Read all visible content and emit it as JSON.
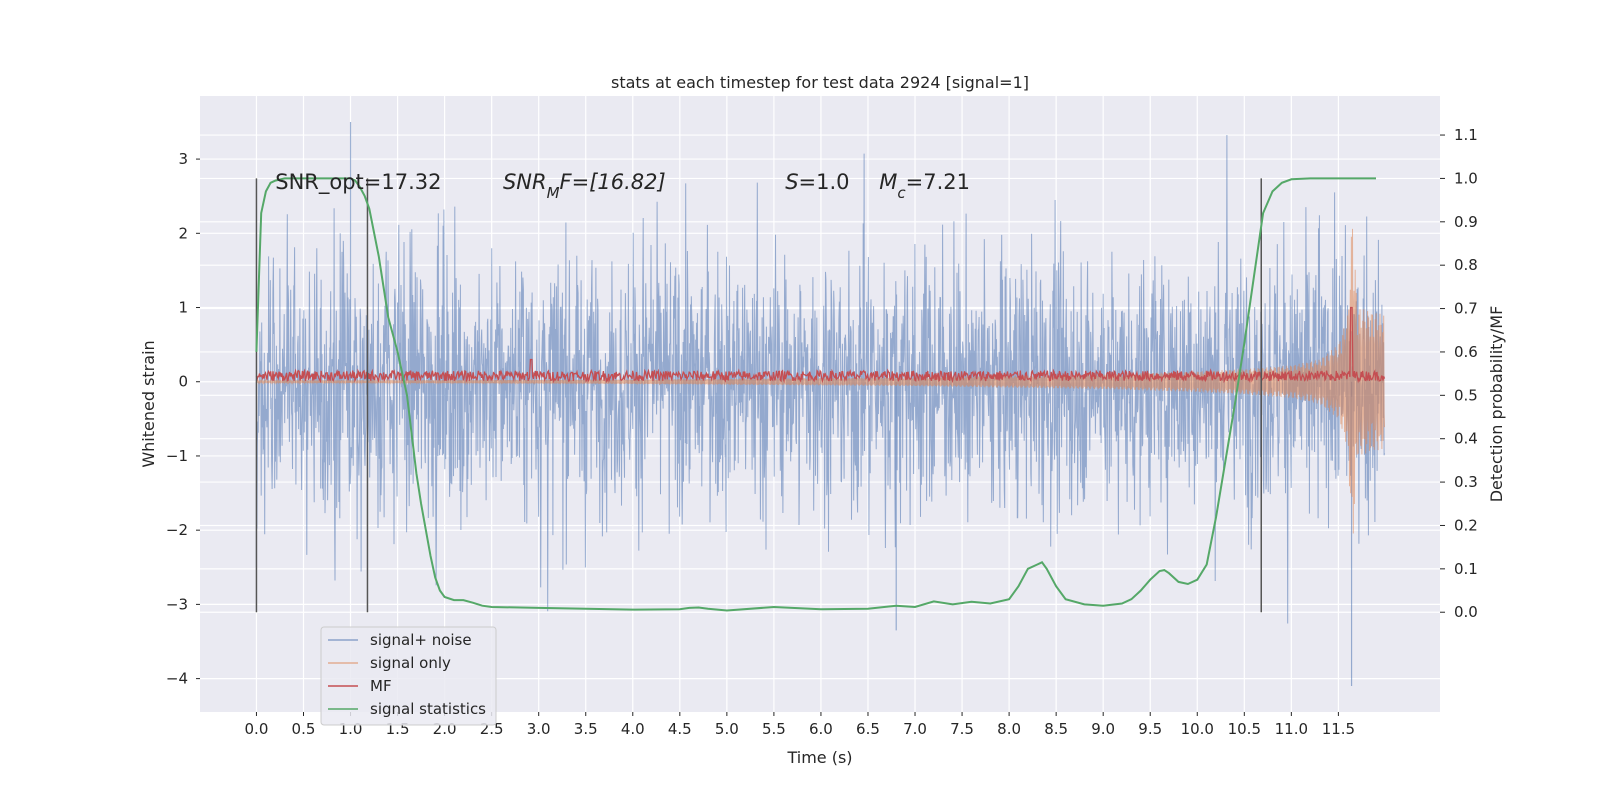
{
  "chart_data": {
    "type": "line",
    "title": "stats at each timestep for test data 2924 [signal=1]",
    "xlabel": "Time (s)",
    "ylabel": "Whitened strain",
    "y2label": "Detection probability/MF",
    "xlim": [
      -0.6,
      12.58
    ],
    "ylim": [
      -4.45,
      3.85
    ],
    "y2lim": [
      -0.23,
      1.19
    ],
    "x_ticks": [
      0.0,
      0.5,
      1.0,
      1.5,
      2.0,
      2.5,
      3.0,
      3.5,
      4.0,
      4.5,
      5.0,
      5.5,
      6.0,
      6.5,
      7.0,
      7.5,
      8.0,
      8.5,
      9.0,
      9.5,
      10.0,
      10.5,
      11.0,
      11.5
    ],
    "x_tick_labels": [
      "0.0",
      "0.5",
      "1.0",
      "1.5",
      "2.0",
      "2.5",
      "3.0",
      "3.5",
      "4.0",
      "4.5",
      "5.0",
      "5.5",
      "6.0",
      "6.5",
      "7.0",
      "7.5",
      "8.0",
      "8.5",
      "9.0",
      "9.5",
      "10.0",
      "10.5",
      "11.0",
      "11.5"
    ],
    "y_ticks": [
      -4,
      -3,
      -2,
      -1,
      0,
      1,
      2,
      3
    ],
    "y_tick_labels": [
      "−4",
      "−3",
      "−2",
      "−1",
      "0",
      "1",
      "2",
      "3"
    ],
    "y2_ticks": [
      0.0,
      0.1,
      0.2,
      0.3,
      0.4,
      0.5,
      0.6,
      0.7,
      0.8,
      0.9,
      1.0,
      1.1
    ],
    "y2_tick_labels": [
      "0.0",
      "0.1",
      "0.2",
      "0.3",
      "0.4",
      "0.5",
      "0.6",
      "0.7",
      "0.8",
      "0.9",
      "1.0",
      "1.1"
    ],
    "grid": true,
    "legend_position": "lower-left",
    "series": [
      {
        "name": "signal+ noise",
        "axis": "left",
        "color": "#4c72b0",
        "x_range": [
          0.0,
          11.99
        ],
        "amplitude_std": 0.85,
        "note_points": [
          [
            0.0,
            -2.5
          ],
          [
            1.0,
            3.5
          ],
          [
            6.8,
            -3.35
          ],
          [
            11.64,
            -4.1
          ]
        ]
      },
      {
        "name": "signal only",
        "axis": "left",
        "color": "#dd8452",
        "envelope": [
          [
            0.0,
            0.015
          ],
          [
            2.0,
            0.02
          ],
          [
            4.0,
            0.03
          ],
          [
            6.0,
            0.05
          ],
          [
            7.0,
            0.06
          ],
          [
            8.0,
            0.08
          ],
          [
            9.0,
            0.1
          ],
          [
            10.0,
            0.14
          ],
          [
            10.5,
            0.17
          ],
          [
            11.0,
            0.22
          ],
          [
            11.3,
            0.3
          ],
          [
            11.5,
            0.5
          ],
          [
            11.6,
            0.9
          ],
          [
            11.65,
            2.3
          ],
          [
            11.7,
            1.0
          ],
          [
            11.99,
            0.9
          ]
        ]
      },
      {
        "name": "MF",
        "axis": "left",
        "color": "#c44e52",
        "level": 0.08,
        "spikes": [
          [
            2.92,
            0.3
          ],
          [
            11.64,
            1.0
          ]
        ]
      },
      {
        "name": "signal statistics",
        "axis": "right",
        "color": "#55a868",
        "x": [
          0.0,
          0.05,
          0.1,
          0.15,
          0.2,
          0.3,
          0.5,
          0.8,
          1.0,
          1.05,
          1.1,
          1.15,
          1.2,
          1.3,
          1.4,
          1.5,
          1.6,
          1.7,
          1.75,
          1.8,
          1.85,
          1.9,
          1.95,
          2.0,
          2.1,
          2.2,
          2.3,
          2.4,
          2.5,
          3.0,
          3.5,
          4.0,
          4.5,
          4.6,
          4.7,
          4.8,
          5.0,
          5.5,
          6.0,
          6.5,
          6.8,
          7.0,
          7.2,
          7.4,
          7.6,
          7.8,
          8.0,
          8.1,
          8.2,
          8.3,
          8.35,
          8.4,
          8.5,
          8.6,
          8.8,
          9.0,
          9.2,
          9.3,
          9.4,
          9.5,
          9.6,
          9.65,
          9.7,
          9.8,
          9.9,
          10.0,
          10.1,
          10.2,
          10.3,
          10.4,
          10.5,
          10.6,
          10.7,
          10.8,
          10.9,
          11.0,
          11.2,
          11.5,
          11.9
        ],
        "y": [
          0.6,
          0.92,
          0.97,
          0.99,
          0.995,
          1.0,
          1.0,
          1.0,
          1.0,
          0.995,
          0.98,
          0.96,
          0.93,
          0.82,
          0.68,
          0.6,
          0.5,
          0.32,
          0.25,
          0.19,
          0.13,
          0.08,
          0.05,
          0.035,
          0.028,
          0.028,
          0.022,
          0.015,
          0.012,
          0.01,
          0.008,
          0.006,
          0.007,
          0.01,
          0.011,
          0.008,
          0.004,
          0.012,
          0.007,
          0.008,
          0.015,
          0.012,
          0.025,
          0.018,
          0.024,
          0.02,
          0.03,
          0.06,
          0.1,
          0.11,
          0.115,
          0.1,
          0.06,
          0.03,
          0.018,
          0.015,
          0.02,
          0.03,
          0.05,
          0.075,
          0.095,
          0.097,
          0.09,
          0.07,
          0.065,
          0.075,
          0.11,
          0.22,
          0.35,
          0.48,
          0.62,
          0.77,
          0.92,
          0.97,
          0.99,
          0.998,
          1.0,
          1.0,
          1.0
        ]
      }
    ],
    "vertical_markers": [
      0.0,
      1.18,
      10.68
    ],
    "annotations": [
      {
        "id": "snr_opt",
        "text": "SNR_opt=17.32",
        "x": 0.2,
        "y": 2.6
      },
      {
        "id": "snr_mf",
        "base": "SNR",
        "sub": "M",
        "tail": "F=[16.82]",
        "x": 2.62,
        "y": 2.6
      },
      {
        "id": "s",
        "base": "S",
        "tail": "=1.0",
        "x": 5.62,
        "y": 2.6
      },
      {
        "id": "mc",
        "base": "M",
        "sub": "c",
        "tail": "=7.21",
        "x": 6.62,
        "y": 2.6
      }
    ]
  }
}
